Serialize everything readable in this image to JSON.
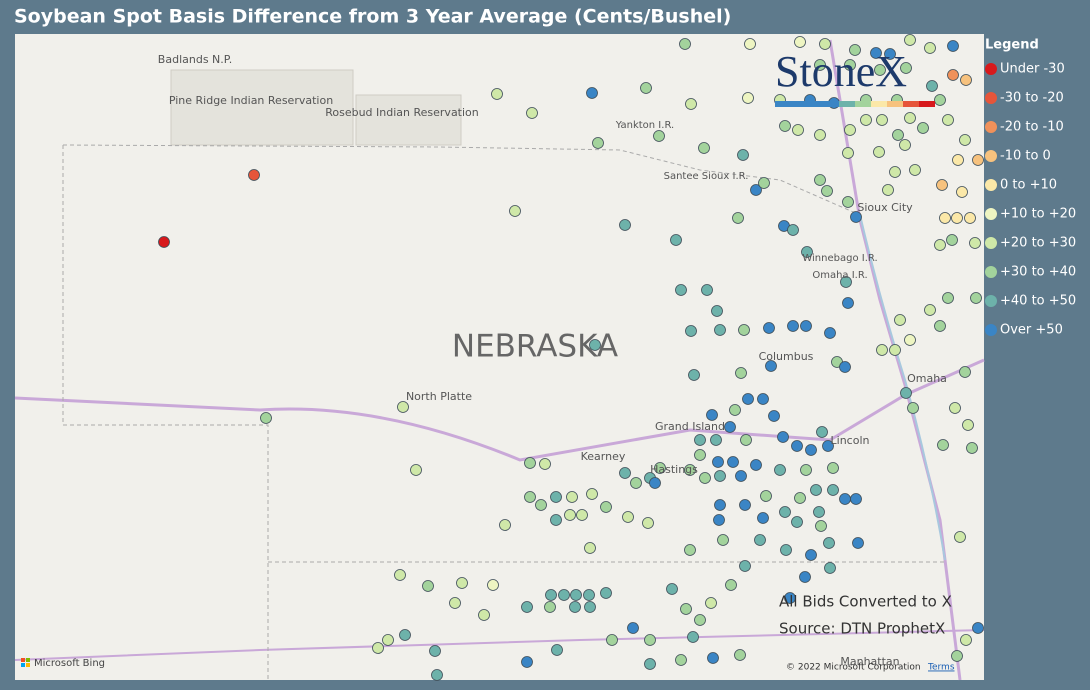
{
  "header": {
    "title": "Soybean Spot Basis Difference from 3 Year Average (Cents/Bushel)"
  },
  "logo": {
    "text": "StoneX"
  },
  "legend": {
    "title": "Legend",
    "items": [
      {
        "label": "Under -30",
        "color": "#d7191c"
      },
      {
        "label": "-30 to -20",
        "color": "#e6553a"
      },
      {
        "label": "-20 to -10",
        "color": "#f0915a"
      },
      {
        "label": "-10 to 0",
        "color": "#f7c27e"
      },
      {
        "label": "0 to +10",
        "color": "#fbe8a8"
      },
      {
        "label": "+10 to +20",
        "color": "#eef5c2"
      },
      {
        "label": "+20 to +30",
        "color": "#cfe8a8"
      },
      {
        "label": "+30 to +40",
        "color": "#a3d39c"
      },
      {
        "label": "+40 to +50",
        "color": "#6db2aa"
      },
      {
        "label": "Over +50",
        "color": "#3a85c5"
      }
    ]
  },
  "map": {
    "labels": [
      "Badlands N.P.",
      "Pine Ridge Indian Reservation",
      "Rosebud Indian Reservation",
      "Yankton I.R.",
      "Santee Sioux I.R.",
      "Sioux City",
      "Winnebago I.R.",
      "Omaha I.R.",
      "Columbus",
      "Omaha",
      "NEBRASKA",
      "North Platte",
      "Grand Island",
      "Kearney",
      "Hastings",
      "Lincoln",
      "Manhattan"
    ]
  },
  "notes": [
    "All Bids Converted to X",
    "Source: DTN ProphetX"
  ],
  "footer": {
    "bing": "Microsoft Bing",
    "copyright": "© 2022 Microsoft Corporation",
    "terms": "Terms"
  }
}
